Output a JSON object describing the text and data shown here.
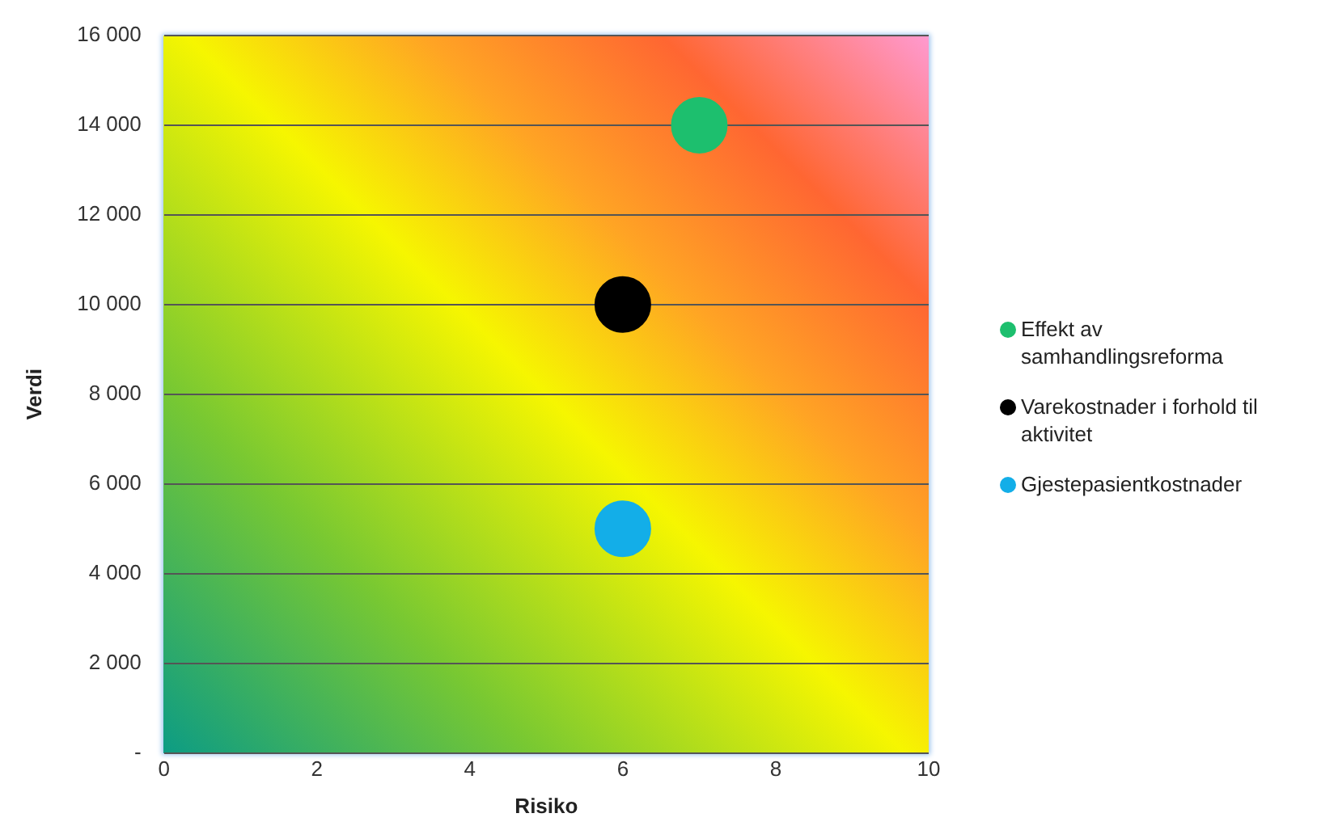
{
  "chart_data": {
    "type": "bubble",
    "xlabel": "Risiko",
    "ylabel": "Verdi",
    "x": [
      6,
      7
    ],
    "xlim": [
      0,
      10
    ],
    "xticks": [
      0,
      2,
      4,
      6,
      8,
      10
    ],
    "ylim": [
      0,
      16000
    ],
    "yticks": [
      {
        "value": 0,
        "label": "-"
      },
      {
        "value": 2000,
        "label": "2 000"
      },
      {
        "value": 4000,
        "label": "4 000"
      },
      {
        "value": 6000,
        "label": "6 000"
      },
      {
        "value": 8000,
        "label": "8 000"
      },
      {
        "value": 10000,
        "label": "10 000"
      },
      {
        "value": 12000,
        "label": "12 000"
      },
      {
        "value": 14000,
        "label": "14 000"
      },
      {
        "value": 16000,
        "label": "16 000"
      }
    ],
    "grid": "y",
    "legend": "right",
    "series": [
      {
        "name": "Effekt av samhandlingsreforma",
        "color": "#1dbf6e",
        "values": [
          null,
          14000
        ],
        "sizes": [
          null,
          1
        ]
      },
      {
        "name": "Varekostnader i forhold til aktivitet",
        "color": "#000000",
        "values": [
          10000,
          null
        ],
        "sizes": [
          1,
          null
        ]
      },
      {
        "name": "Gjestepasientkostnader",
        "color": "#13aee8",
        "values": [
          5000,
          null
        ],
        "sizes": [
          1,
          null
        ]
      }
    ]
  }
}
